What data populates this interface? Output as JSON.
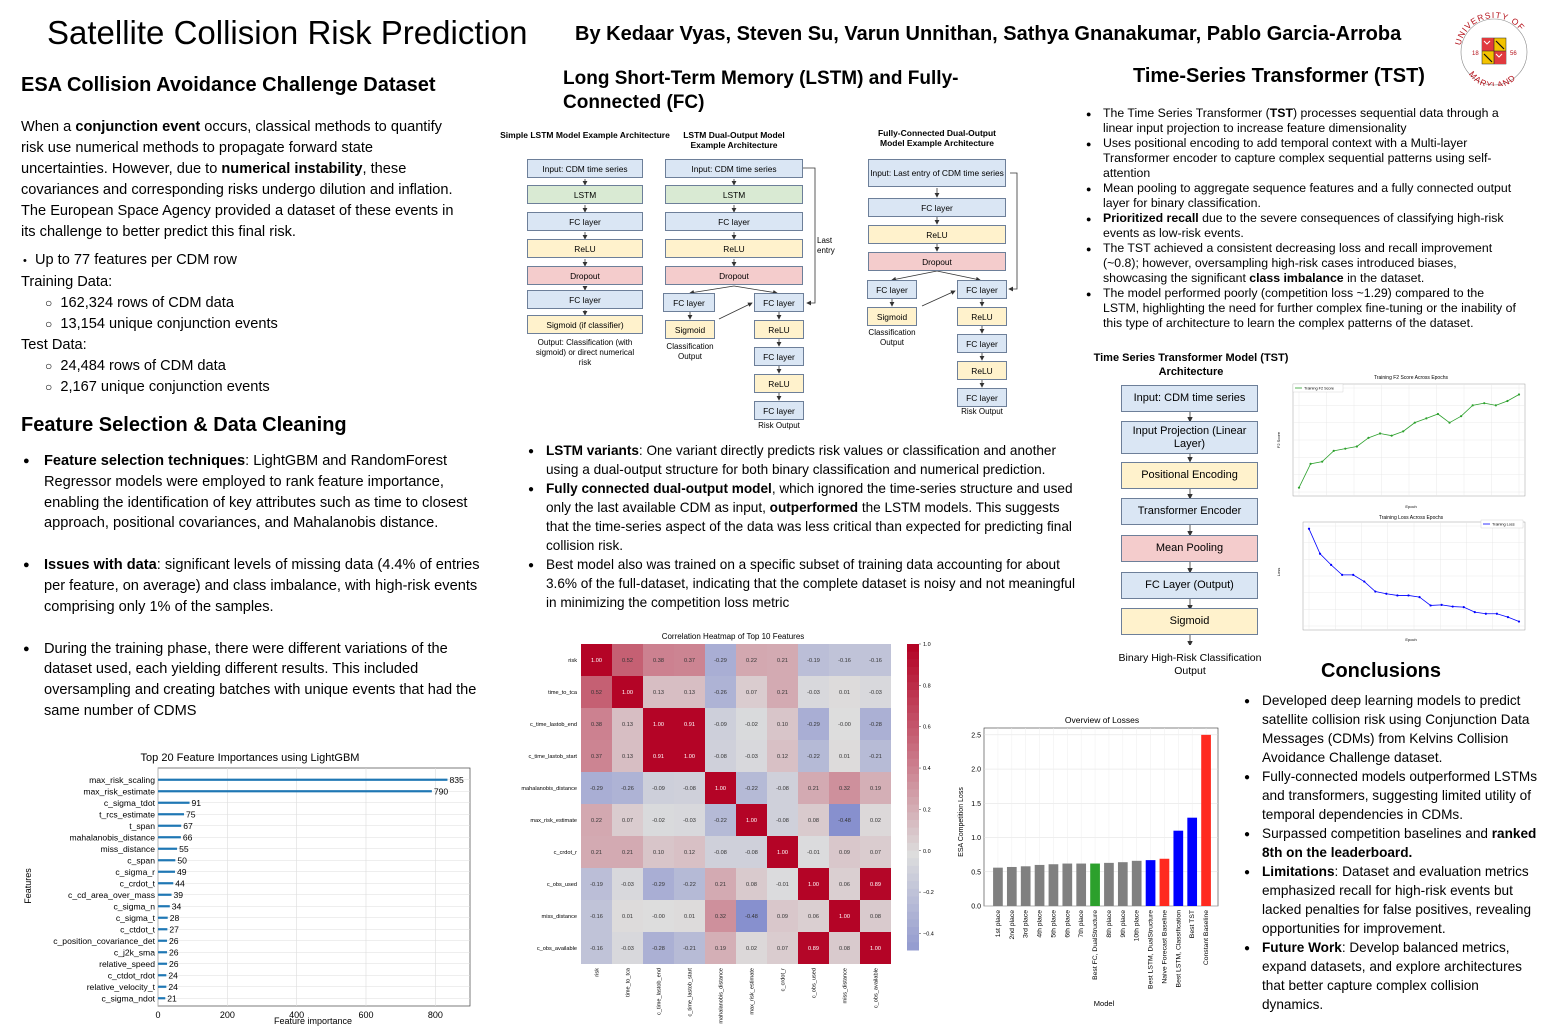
{
  "header": {
    "title": "Satellite Collision Risk Prediction",
    "authors": "By Kedaar Vyas, Steven Su, Varun Unnithan, Sathya Gnanakumar, Pablo Garcia-Arroba",
    "seal": "UNIVERSITY OF MARYLAND 1856"
  },
  "dataset": {
    "heading": "ESA Collision Avoidance Challenge Dataset",
    "p1": "When a",
    "p1_bold": "conjunction event",
    "p2": "occurs, classical methods to quantify risk use numerical methods to propagate forward state uncertainties. However, due to",
    "p2_bold": "numerical instability",
    "p3": ", these covariances and corresponding risks undergo dilution and inflation. The European Space Agency provided a dataset of these events in its challenge to better predict this final risk.",
    "features": "Up to 77 features per CDM row",
    "training_label": "Training Data:",
    "training": [
      "162,324 rows of CDM data",
      "13,154 unique conjunction events"
    ],
    "test_label": "Test Data:",
    "test": [
      "24,484 rows of CDM data",
      "2,167 unique conjunction events"
    ]
  },
  "feature_selection": {
    "heading": "Feature Selection & Data Cleaning",
    "b1_bold": "Feature selection techniques",
    "b1": ": LightGBM and RandomForest Regressor models were employed to rank feature importance, enabling the identification of key attributes such as time to closest approach, positional covariances, and Mahalanobis distance.",
    "b2_bold": "Issues with data",
    "b2": ": significant levels of missing data (4.4% of entries per feature, on average) and class imbalance, with high-risk events comprising only 1% of the samples.",
    "b3": "During the training phase, there were different variations of the dataset used, each yielding different results. This included oversampling and creating batches with unique events that had the same number of CDMS"
  },
  "lstm": {
    "heading": "Long Short-Term Memory (LSTM) and Fully-Connected (FC)",
    "arch1_title": "Simple LSTM Model Example Architecture",
    "arch2_title": "LSTM Dual-Output Model Example Architecture",
    "arch3_title": "Fully-Connected Dual-Output Model Example Architecture",
    "a1": [
      "Input: CDM time series",
      "LSTM",
      "FC layer",
      "ReLU",
      "Dropout",
      "FC layer",
      "Sigmoid (if classifier)"
    ],
    "a1_caption": "Output: Classification (with sigmoid) or direct numerical risk",
    "a2": [
      "Input: CDM time series",
      "LSTM",
      "FC layer",
      "ReLU",
      "Dropout"
    ],
    "a2_left": [
      "FC layer",
      "Sigmoid"
    ],
    "a2_right": [
      "FC layer",
      "ReLU",
      "FC layer",
      "ReLU",
      "FC layer"
    ],
    "a2_last_entry": "Last entry",
    "a2_class_out": "Classification Output",
    "a2_risk_out": "Risk Output",
    "a3": [
      "Input: Last entry of CDM time series",
      "FC layer",
      "ReLU",
      "Dropout"
    ],
    "a3_left": [
      "FC layer",
      "Sigmoid"
    ],
    "a3_right": [
      "FC layer",
      "ReLU",
      "FC layer",
      "ReLU",
      "FC layer"
    ],
    "a3_class_out": "Classification Output",
    "a3_risk_out": "Risk Output",
    "b1_bold": "LSTM variants",
    "b1": ": One variant directly predicts risk values or classification and another using a dual-output structure for both binary classification and numerical prediction.",
    "b2_bold": "Fully connected dual-output model",
    "b2a": ", which ignored the time-series structure and used only the last available CDM as input,",
    "b2_bold2": "outperformed",
    "b2b": "the LSTM models. This suggests that the time-series aspect of the data was less critical than expected for predicting final collision risk.",
    "b3": "Best model also was trained on a specific subset of training data accounting for about 3.6% of the full-dataset, indicating that the complete dataset is noisy and not meaningful in minimizing the competition loss metric"
  },
  "tst": {
    "heading": "Time-Series Transformer (TST)",
    "b1a": "The Time Series Transformer (",
    "b1_bold": "TST",
    "b1b": ") processes sequential data through a linear input projection to increase feature dimensionality",
    "b2": "Uses positional encoding to add temporal context with a Multi-layer Transformer encoder to capture complex sequential patterns using self-attention",
    "b3": "Mean pooling to aggregate sequence features and a fully connected output layer for binary classification.",
    "b4_bold": "Prioritized recall",
    "b4": "due to the severe consequences of classifying high-risk events as low-risk events.",
    "b5a": "The TST achieved a consistent decreasing loss and recall improvement (~0.8); however, oversampling high-risk cases introduced biases, showcasing the significant",
    "b5_bold": "class imbalance",
    "b5b": "in the dataset.",
    "b6": "The model performed poorly (competition loss ~1.29) compared to the LSTM, highlighting the need for further complex fine-tuning or the inability of this type of architecture to learn the complex patterns of the dataset.",
    "arch_title": "Time Series Transformer Model (TST) Architecture",
    "arch": [
      "Input: CDM time series",
      "Input Projection (Linear Layer)",
      "Positional Encoding",
      "Transformer Encoder",
      "Mean Pooling",
      "FC Layer (Output)",
      "Sigmoid"
    ],
    "arch_output": "Binary High-Risk Classification Output",
    "f2_title": "Training F2 Score Across Epochs",
    "f2_legend": "Training F2 Score",
    "f2_xlabel": "Epoch",
    "f2_ylabel": "F2 Score",
    "loss_title": "Training Loss Across Epochs",
    "loss_legend": "Training Loss",
    "loss_xlabel": "Epoch",
    "loss_ylabel": "Loss"
  },
  "conclusions": {
    "heading": "Conclusions",
    "b1": "Developed deep learning models to predict satellite collision risk using Conjunction Data Messages (CDMs) from Kelvins Collision Avoidance Challenge dataset.",
    "b2": "Fully-connected models outperformed LSTMs and transformers, suggesting limited utility of temporal dependencies in CDMs.",
    "b3a": "Surpassed competition baselines and",
    "b3_bold": "ranked 8th on the leaderboard.",
    "b4_bold": "Limitations",
    "b4": ": Dataset and evaluation metrics emphasized recall for high-risk events but lacked penalties for false positives, revealing opportunities for improvement.",
    "b5_bold": "Future Work",
    "b5": ": Develop balanced metrics, expand datasets, and explore architectures that better capture complex collision dynamics."
  },
  "chart_data": [
    {
      "type": "bar",
      "orientation": "horizontal",
      "title": "Top 20 Feature Importances using LightGBM",
      "xlabel": "Feature importance",
      "ylabel": "Features",
      "xlim": [
        0,
        900
      ],
      "xticks": [
        0,
        200,
        400,
        600,
        800
      ],
      "grid": true,
      "color": "#1f77b4",
      "categories": [
        "max_risk_scaling",
        "max_risk_estimate",
        "c_sigma_tdot",
        "t_rcs_estimate",
        "t_span",
        "mahalanobis_distance",
        "miss_distance",
        "c_span",
        "c_sigma_r",
        "c_crdot_t",
        "c_cd_area_over_mass",
        "c_sigma_n",
        "c_sigma_t",
        "c_ctdot_t",
        "c_position_covariance_det",
        "c_j2k_sma",
        "relative_speed",
        "c_ctdot_rdot",
        "relative_velocity_t",
        "c_sigma_ndot"
      ],
      "values": [
        835,
        790,
        91,
        75,
        67,
        66,
        55,
        50,
        49,
        44,
        39,
        34,
        28,
        27,
        26,
        26,
        26,
        24,
        24,
        21
      ],
      "value_labels": [
        "835",
        "790",
        "91",
        "75",
        "67",
        "66",
        "55",
        "50",
        "49",
        "44",
        "39",
        "34",
        "28",
        "27",
        "26",
        "26",
        "26",
        "24",
        "24",
        "21"
      ]
    },
    {
      "type": "heatmap",
      "title": "Correlation Heatmap of Top 10 Features",
      "labels": [
        "risk",
        "time_to_tca",
        "c_time_lastob_end",
        "c_time_lastob_start",
        "mahalanobis_distance",
        "max_risk_estimate",
        "c_crdot_r",
        "c_obs_used",
        "miss_distance",
        "c_obs_available"
      ],
      "values": [
        [
          1.0,
          0.52,
          0.38,
          0.37,
          -0.29,
          0.22,
          0.21,
          -0.19,
          -0.16,
          -0.16
        ],
        [
          0.52,
          1.0,
          0.13,
          0.13,
          -0.26,
          0.07,
          0.21,
          -0.03,
          0.01,
          -0.03
        ],
        [
          0.38,
          0.13,
          1.0,
          0.91,
          -0.09,
          -0.02,
          0.1,
          -0.29,
          -0.0,
          -0.28
        ],
        [
          0.37,
          0.13,
          0.91,
          1.0,
          -0.08,
          -0.03,
          0.12,
          -0.22,
          0.01,
          -0.21
        ],
        [
          -0.29,
          -0.26,
          -0.09,
          -0.08,
          1.0,
          -0.22,
          -0.08,
          0.21,
          0.32,
          0.19
        ],
        [
          0.22,
          0.07,
          -0.02,
          -0.03,
          -0.22,
          1.0,
          -0.08,
          0.08,
          -0.48,
          0.02
        ],
        [
          0.21,
          0.21,
          0.1,
          0.12,
          -0.08,
          -0.08,
          1.0,
          -0.01,
          0.09,
          0.07
        ],
        [
          -0.19,
          -0.03,
          -0.29,
          -0.22,
          0.21,
          0.08,
          -0.01,
          1.0,
          0.06,
          0.89
        ],
        [
          -0.16,
          0.01,
          -0.0,
          0.01,
          0.32,
          -0.48,
          0.09,
          0.06,
          1.0,
          0.08
        ],
        [
          -0.16,
          -0.03,
          -0.28,
          -0.21,
          0.19,
          0.02,
          0.07,
          0.89,
          0.08,
          1.0
        ]
      ],
      "value_labels": [
        [
          "1.00",
          "0.52",
          "0.38",
          "0.37",
          "-0.29",
          "0.22",
          "0.21",
          "-0.19",
          "-0.16",
          "-0.16"
        ],
        [
          "0.52",
          "1.00",
          "0.13",
          "0.13",
          "-0.26",
          "0.07",
          "0.21",
          "-0.03",
          "0.01",
          "-0.03"
        ],
        [
          "0.38",
          "0.13",
          "1.00",
          "0.91",
          "-0.09",
          "-0.02",
          "0.10",
          "-0.29",
          "-0.00",
          "-0.28"
        ],
        [
          "0.37",
          "0.13",
          "0.91",
          "1.00",
          "-0.08",
          "-0.03",
          "0.12",
          "-0.22",
          "0.01",
          "-0.21"
        ],
        [
          "-0.29",
          "-0.26",
          "-0.09",
          "-0.08",
          "1.00",
          "-0.22",
          "-0.08",
          "0.21",
          "0.32",
          "0.19"
        ],
        [
          "0.22",
          "0.07",
          "-0.02",
          "-0.03",
          "-0.22",
          "1.00",
          "-0.08",
          "0.08",
          "-0.48",
          "0.02"
        ],
        [
          "0.21",
          "0.21",
          "0.10",
          "0.12",
          "-0.08",
          "-0.08",
          "1.00",
          "-0.01",
          "0.09",
          "0.07"
        ],
        [
          "-0.19",
          "-0.03",
          "-0.29",
          "-0.22",
          "0.21",
          "0.08",
          "-0.01",
          "1.00",
          "0.06",
          "0.89"
        ],
        [
          "-0.16",
          "0.01",
          "-0.00",
          "0.01",
          "0.32",
          "-0.48",
          "0.09",
          "0.06",
          "1.00",
          "0.08"
        ],
        [
          "-0.16",
          "-0.03",
          "-0.28",
          "-0.21",
          "0.19",
          "0.02",
          "0.07",
          "0.89",
          "0.08",
          "1.00"
        ]
      ],
      "colorbar_ticks": [
        1.0,
        0.8,
        0.6,
        0.4,
        0.2,
        0.0,
        -0.2,
        -0.4
      ],
      "colorbar_labels": [
        "1.0",
        "0.8",
        "0.6",
        "0.4",
        "0.2",
        "0.0",
        "−0.2",
        "−0.4"
      ],
      "vmin": -0.48,
      "vmax": 1.0,
      "colormap": "coolwarm"
    },
    {
      "type": "bar",
      "title": "Overview of Losses",
      "xlabel": "Model",
      "ylabel": "ESA Competition Loss",
      "ylim": [
        0,
        2.6
      ],
      "yticks": [
        0.0,
        0.5,
        1.0,
        1.5,
        2.0,
        2.5
      ],
      "ytick_labels": [
        "0.0",
        "0.5",
        "1.0",
        "1.5",
        "2.0",
        "2.5"
      ],
      "grid": true,
      "categories": [
        "1st place",
        "2nd place",
        "3rd place",
        "4th place",
        "5th place",
        "6th place",
        "7th place",
        "Best FC, DualStructure",
        "8th place",
        "9th place",
        "10th place",
        "Best LSTM, DualStructure",
        "Naive Forecast Baseline",
        "Best LSTM, Classification",
        "Best TST",
        "Constant Baseline"
      ],
      "values": [
        0.56,
        0.57,
        0.58,
        0.6,
        0.61,
        0.62,
        0.62,
        0.62,
        0.63,
        0.64,
        0.66,
        0.67,
        0.69,
        1.1,
        1.29,
        2.5
      ],
      "colors": [
        "#808080",
        "#808080",
        "#808080",
        "#808080",
        "#808080",
        "#808080",
        "#808080",
        "#2ca02c",
        "#808080",
        "#808080",
        "#808080",
        "#0000ff",
        "#ff2a1f",
        "#0000ff",
        "#0000ff",
        "#ff2a1f"
      ]
    },
    {
      "type": "line",
      "title": "Training F2 Score Across Epochs",
      "series": [
        {
          "name": "Training F2 Score",
          "x": [
            1,
            2,
            3,
            4,
            5,
            6,
            7,
            8,
            9,
            10,
            11,
            12,
            13,
            14,
            15,
            16,
            17,
            18,
            19,
            20
          ],
          "y": [
            0.4,
            0.51,
            0.52,
            0.57,
            0.58,
            0.59,
            0.63,
            0.65,
            0.64,
            0.66,
            0.7,
            0.72,
            0.74,
            0.7,
            0.73,
            0.78,
            0.79,
            0.78,
            0.8,
            0.83
          ]
        }
      ],
      "xlim": [
        1,
        20
      ],
      "ylim": [
        0.38,
        0.86
      ],
      "color": "#2ca02c"
    },
    {
      "type": "line",
      "title": "Training Loss Across Epochs",
      "series": [
        {
          "name": "Training Loss",
          "x": [
            1,
            2,
            3,
            4,
            5,
            6,
            7,
            8,
            9,
            10,
            11,
            12,
            13,
            14,
            15,
            16,
            17,
            18,
            19,
            20
          ],
          "y": [
            0.0335,
            0.029,
            0.027,
            0.0252,
            0.0252,
            0.024,
            0.0222,
            0.0218,
            0.0215,
            0.0215,
            0.0212,
            0.0197,
            0.0198,
            0.0195,
            0.0194,
            0.0185,
            0.0182,
            0.0182,
            0.0176,
            0.0168
          ]
        }
      ],
      "xlim": [
        1,
        20
      ],
      "ylim": [
        0.016,
        0.034
      ],
      "color": "#0000ff"
    }
  ]
}
